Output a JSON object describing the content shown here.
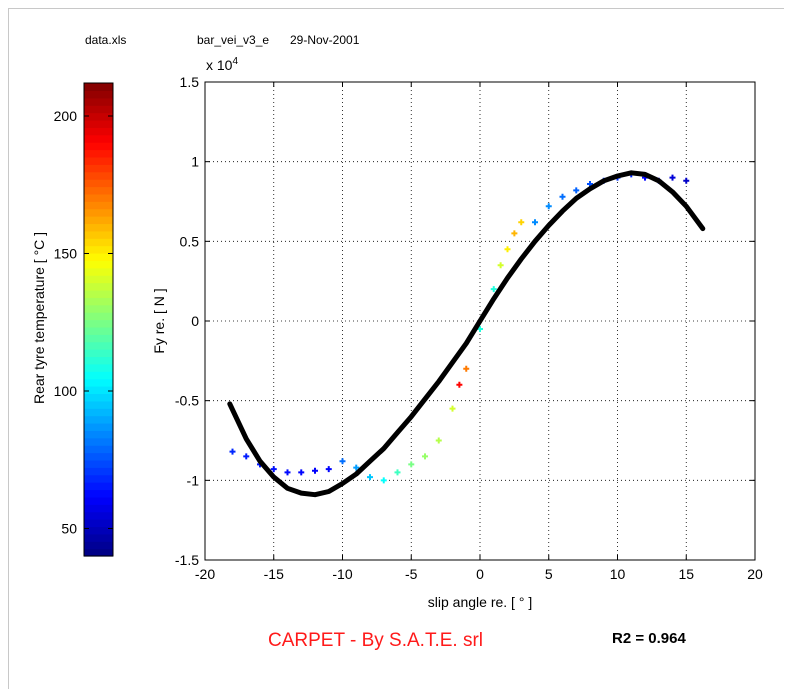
{
  "header": {
    "file": "data.xls",
    "config": "bar_vei_v3_e",
    "date": "29-Nov-2001"
  },
  "footer": {
    "credit": "CARPET - By S.A.T.E. srl",
    "r2": "R2 = 0.964"
  },
  "colorbar": {
    "label": "Rear tyre temperature [ °C ]",
    "range": [
      40,
      212
    ],
    "ticks": [
      50,
      100,
      150,
      200
    ],
    "colormap": "jet"
  },
  "chart_data": {
    "type": "scatter",
    "xlabel": "slip angle re.  [ ° ]",
    "ylabel": "Fy re. [ N ]",
    "y_multiplier": "x 10",
    "y_multiplier_exp": "4",
    "xlim": [
      -20,
      20
    ],
    "ylim": [
      -1.5,
      1.5
    ],
    "xticks": [
      -20,
      -15,
      -10,
      -5,
      0,
      5,
      10,
      15,
      20
    ],
    "yticks": [
      -1.5,
      -1,
      -0.5,
      0,
      0.5,
      1,
      1.5
    ],
    "grid": true,
    "series": [
      {
        "kind": "scatter",
        "color_by": "Rear tyre temperature [ °C ]",
        "points": [
          [
            -18,
            -0.82,
            68
          ],
          [
            -17,
            -0.85,
            66
          ],
          [
            -16,
            -0.9,
            65
          ],
          [
            -15,
            -0.93,
            64
          ],
          [
            -14,
            -0.95,
            63
          ],
          [
            -13,
            -0.95,
            62
          ],
          [
            -12,
            -0.94,
            61
          ],
          [
            -11,
            -0.93,
            62
          ],
          [
            -10,
            -0.88,
            80
          ],
          [
            -9,
            -0.92,
            88
          ],
          [
            -8,
            -0.98,
            95
          ],
          [
            -7,
            -1.0,
            105
          ],
          [
            -6,
            -0.95,
            115
          ],
          [
            -5,
            -0.9,
            125
          ],
          [
            -4,
            -0.85,
            130
          ],
          [
            -3,
            -0.75,
            135
          ],
          [
            -2,
            -0.55,
            140
          ],
          [
            -1.5,
            -0.4,
            190
          ],
          [
            -1,
            -0.3,
            170
          ],
          [
            0,
            -0.05,
            110
          ],
          [
            1,
            0.2,
            110
          ],
          [
            1.5,
            0.35,
            140
          ],
          [
            2,
            0.45,
            150
          ],
          [
            2.5,
            0.55,
            160
          ],
          [
            3,
            0.62,
            155
          ],
          [
            4,
            0.62,
            85
          ],
          [
            5,
            0.72,
            85
          ],
          [
            6,
            0.78,
            80
          ],
          [
            7,
            0.82,
            78
          ],
          [
            8,
            0.86,
            75
          ],
          [
            9,
            0.88,
            72
          ],
          [
            10,
            0.9,
            70
          ],
          [
            11,
            0.92,
            68
          ],
          [
            12,
            0.9,
            62
          ],
          [
            13,
            0.88,
            58
          ],
          [
            14,
            0.9,
            55
          ],
          [
            15,
            0.88,
            52
          ]
        ]
      },
      {
        "kind": "fit",
        "color": "#000000",
        "x": [
          -18.2,
          -17,
          -16,
          -15,
          -14,
          -13,
          -12,
          -11,
          -10,
          -9,
          -8,
          -7,
          -6,
          -5,
          -4,
          -3,
          -2,
          -1,
          0,
          1,
          2,
          3,
          4,
          5,
          6,
          7,
          8,
          9,
          10,
          11,
          12,
          13,
          14,
          15,
          16.2
        ],
        "y": [
          -0.52,
          -0.74,
          -0.88,
          -0.98,
          -1.05,
          -1.08,
          -1.09,
          -1.07,
          -1.02,
          -0.96,
          -0.88,
          -0.8,
          -0.7,
          -0.6,
          -0.49,
          -0.38,
          -0.26,
          -0.14,
          0.0,
          0.14,
          0.27,
          0.39,
          0.5,
          0.6,
          0.69,
          0.77,
          0.83,
          0.88,
          0.91,
          0.93,
          0.92,
          0.88,
          0.81,
          0.72,
          0.58
        ]
      }
    ]
  }
}
